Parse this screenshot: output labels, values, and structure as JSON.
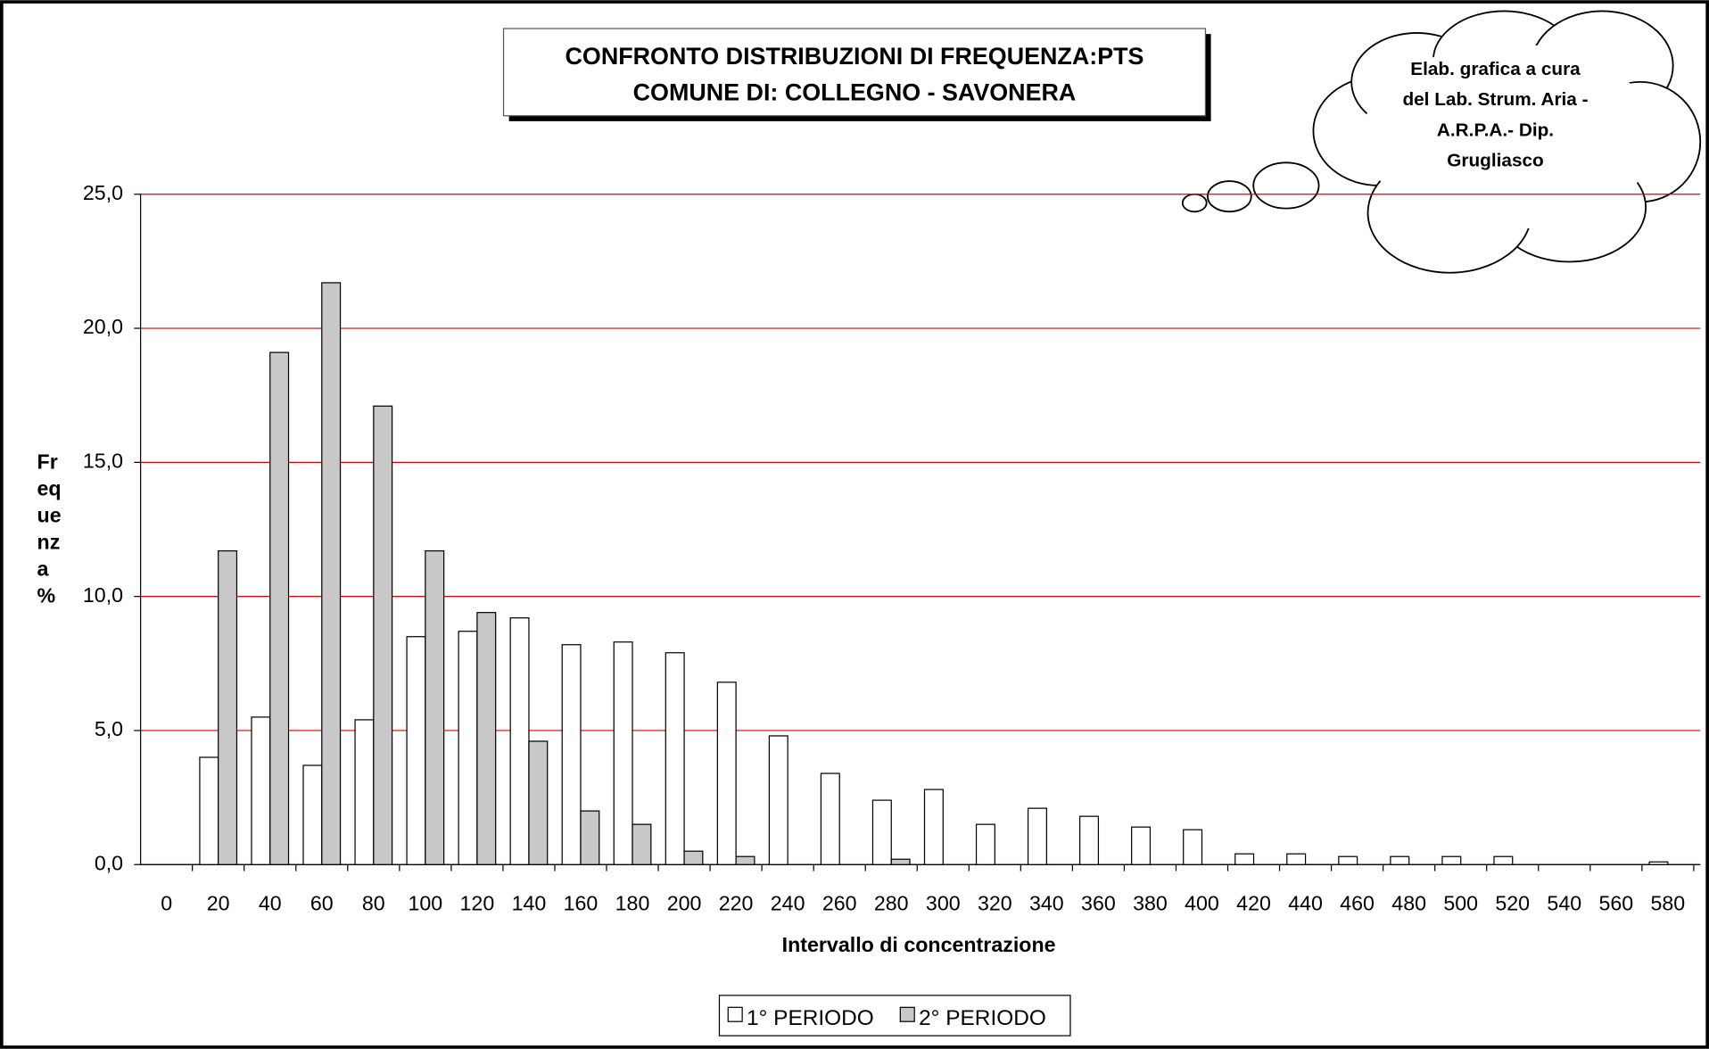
{
  "chart_data": {
    "type": "bar",
    "title": [
      "CONFRONTO DISTRIBUZIONI DI FREQUENZA:PTS",
      "COMUNE DI: COLLEGNO - SAVONERA"
    ],
    "annotation": [
      "Elab. grafica a cura",
      "del Lab. Strum. Aria -",
      "A.R.P.A.- Dip.",
      "Grugliasco"
    ],
    "x_label": "Intervallo di concentrazione",
    "y_label": [
      "Fr",
      "eq",
      "ue",
      "nz",
      "a",
      "%"
    ],
    "categories": [
      "0",
      "20",
      "40",
      "60",
      "80",
      "100",
      "120",
      "140",
      "160",
      "180",
      "200",
      "220",
      "240",
      "260",
      "280",
      "300",
      "320",
      "340",
      "360",
      "380",
      "400",
      "420",
      "440",
      "460",
      "480",
      "500",
      "520",
      "540",
      "560",
      "580"
    ],
    "series": [
      {
        "name": "1° PERIODO",
        "color": "#ffffff",
        "values": [
          0,
          4.0,
          5.5,
          3.7,
          5.4,
          8.5,
          8.7,
          9.2,
          8.2,
          8.3,
          7.9,
          6.8,
          4.8,
          3.4,
          2.4,
          2.8,
          1.5,
          2.1,
          1.8,
          1.4,
          1.3,
          0.4,
          0.4,
          0.3,
          0.3,
          0.3,
          0.3,
          0,
          0,
          0.1
        ]
      },
      {
        "name": "2° PERIODO",
        "color": "#c8c8c8",
        "values": [
          0,
          11.7,
          19.1,
          21.7,
          17.1,
          11.7,
          9.4,
          4.6,
          2.0,
          1.5,
          0.5,
          0.3,
          0,
          0,
          0.2,
          0,
          0,
          0,
          0,
          0,
          0,
          0,
          0,
          0,
          0,
          0,
          0,
          0,
          0,
          0
        ]
      }
    ],
    "ylim": [
      0,
      25
    ],
    "yticks": [
      {
        "value": 0,
        "label": "0,0"
      },
      {
        "value": 5,
        "label": "5,0"
      },
      {
        "value": 10,
        "label": "10,0"
      },
      {
        "value": 15,
        "label": "15,0"
      },
      {
        "value": 20,
        "label": "20,0"
      },
      {
        "value": 25,
        "label": "25,0"
      }
    ],
    "grid": true,
    "grid_color": "#e00000",
    "legend": "bottom"
  }
}
